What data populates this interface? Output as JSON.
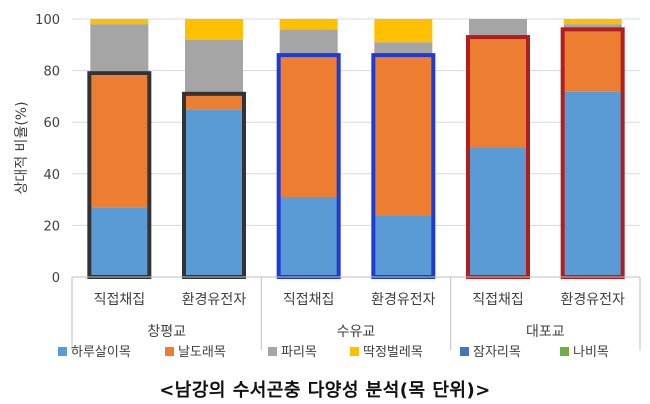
{
  "caption": "<남강의 수서곤충 다양성 분석(목 단위)>",
  "chart_data": {
    "type": "bar",
    "stacked": true,
    "ylabel": "상대적 비율(%)",
    "ylim": [
      0,
      100
    ],
    "yticks": [
      0,
      20,
      40,
      60,
      80,
      100
    ],
    "grid": true,
    "legend_position": "bottom",
    "groups": [
      {
        "name": "창평교",
        "categories": [
          "직접채집",
          "환경유전자"
        ]
      },
      {
        "name": "수유교",
        "categories": [
          "직접채집",
          "환경유전자"
        ]
      },
      {
        "name": "대포교",
        "categories": [
          "직접채집",
          "환경유전자"
        ]
      }
    ],
    "categories": [
      "직접채집",
      "환경유전자",
      "직접채집",
      "환경유전자",
      "직접채집",
      "환경유전자"
    ],
    "series": [
      {
        "name": "하루살이목",
        "color": "#5b9bd5",
        "values": [
          27,
          65,
          31,
          24,
          50,
          72
        ]
      },
      {
        "name": "날도래목",
        "color": "#ed7d31",
        "values": [
          51,
          6,
          55,
          62,
          43,
          24
        ]
      },
      {
        "name": "파리목",
        "color": "#a5a5a5",
        "values": [
          20,
          21,
          10,
          5,
          7,
          2
        ]
      },
      {
        "name": "딱정벌레목",
        "color": "#ffc000",
        "values": [
          2,
          8,
          4,
          9,
          0,
          2
        ]
      },
      {
        "name": "잠자리목",
        "color": "#4472c4",
        "values": [
          0,
          0,
          0,
          0,
          0,
          0
        ]
      },
      {
        "name": "나비목",
        "color": "#70ad47",
        "values": [
          0,
          0,
          0,
          0,
          0,
          0
        ]
      }
    ],
    "highlight_boxes": [
      {
        "group": "창평교",
        "color": "#333333",
        "tops": [
          79,
          71
        ]
      },
      {
        "group": "수유교",
        "color": "#1f3bd1",
        "tops": [
          86,
          86
        ]
      },
      {
        "group": "대포교",
        "color": "#b01e1e",
        "tops": [
          93,
          96
        ]
      }
    ]
  }
}
